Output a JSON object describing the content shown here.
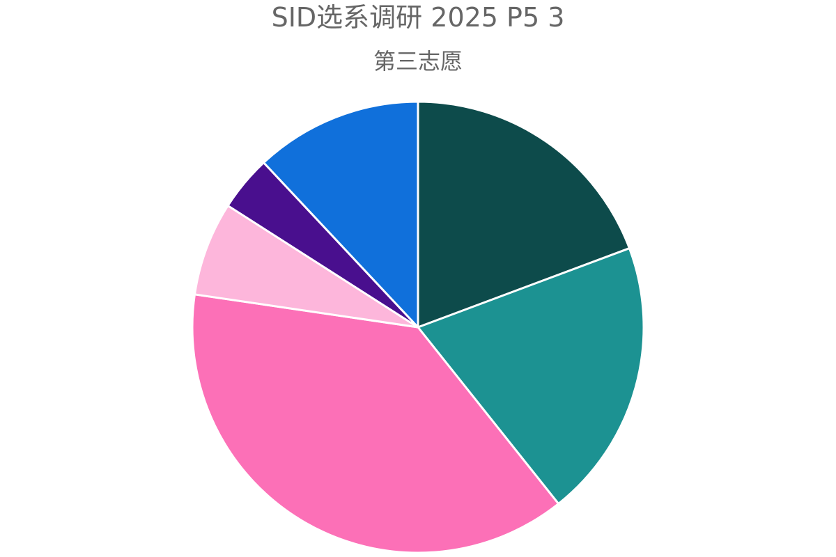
{
  "chart_data": {
    "type": "pie",
    "title": "SID选系调研 2025 P5 3",
    "subtitle": "第三志愿",
    "legend": "none",
    "start_angle": "top",
    "direction": "clockwise",
    "slices": [
      {
        "value": 19.5,
        "color": "#0d4b4b"
      },
      {
        "value": 20.2,
        "color": "#1c9292"
      },
      {
        "value": 38.4,
        "color": "#fc70b7"
      },
      {
        "value": 6.8,
        "color": "#fdb6db"
      },
      {
        "value": 4.0,
        "color": "#490f8e"
      },
      {
        "value": 12.1,
        "color": "#1070db"
      }
    ]
  }
}
